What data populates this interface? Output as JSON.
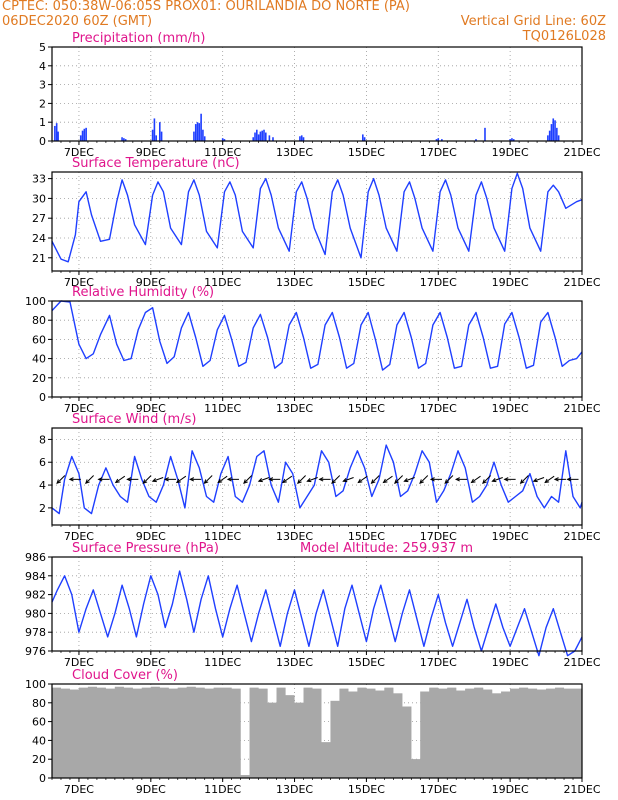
{
  "header": {
    "line1_left": "CPTEC:   050:38W-06:05S   PROX01: OURILANDIA DO NORTE (PA)",
    "line2_left": "06DEC2020 60Z (GMT)",
    "line2_right": "Vertical Grid Line: 60Z",
    "line3_right": "TQ0126L028"
  },
  "colors": {
    "header": "#e07a22",
    "title": "#e0158c",
    "series": "#1f3fff",
    "cloud": "#a8a8a8",
    "arrow": "#000000",
    "frame": "#000000",
    "grid": "#9a9a9a"
  },
  "chart_data": [
    {
      "type": "bar",
      "title": "Precipitation (mm/h)",
      "ylim": [
        0,
        5
      ],
      "yticks": [
        "0",
        "1",
        "2",
        "3",
        "4",
        "5"
      ],
      "xlim": [
        6.25,
        21.0
      ],
      "xticks": [
        {
          "x": 7,
          "label": "7DEC"
        },
        {
          "x": 9,
          "label": "9DEC"
        },
        {
          "x": 11,
          "label": "11DEC"
        },
        {
          "x": 13,
          "label": "13DEC"
        },
        {
          "x": 15,
          "label": "15DEC"
        },
        {
          "x": 17,
          "label": "17DEC"
        },
        {
          "x": 19,
          "label": "19DEC"
        },
        {
          "x": 21,
          "label": "21DEC"
        }
      ],
      "grid": "dotted",
      "x": [
        6.33,
        6.38,
        6.42,
        7.05,
        7.1,
        7.15,
        7.2,
        8.2,
        8.25,
        8.3,
        9.05,
        9.1,
        9.15,
        9.25,
        9.3,
        10.2,
        10.25,
        10.3,
        10.35,
        10.4,
        10.45,
        10.5,
        11.0,
        11.05,
        11.85,
        11.9,
        11.95,
        12.0,
        12.05,
        12.1,
        12.15,
        12.2,
        12.3,
        12.4,
        13.15,
        13.2,
        13.25,
        14.9,
        14.95,
        16.95,
        17.0,
        17.1,
        18.05,
        18.3,
        19.0,
        19.05,
        19.1,
        20.05,
        20.1,
        20.15,
        20.2,
        20.25,
        20.3,
        20.35
      ],
      "values": [
        0.8,
        0.95,
        0.5,
        0.3,
        0.55,
        0.65,
        0.7,
        0.2,
        0.15,
        0.1,
        0.6,
        1.2,
        0.3,
        1.0,
        0.5,
        0.5,
        0.9,
        1.0,
        0.95,
        1.45,
        0.6,
        0.25,
        0.15,
        0.1,
        0.2,
        0.45,
        0.6,
        0.35,
        0.5,
        0.55,
        0.6,
        0.45,
        0.3,
        0.2,
        0.25,
        0.3,
        0.2,
        0.35,
        0.2,
        0.1,
        0.15,
        0.1,
        0.1,
        0.7,
        0.1,
        0.15,
        0.1,
        0.3,
        0.55,
        0.9,
        1.2,
        1.1,
        0.7,
        0.3
      ]
    },
    {
      "type": "line",
      "title": "Surface Temperature (nC)",
      "ylim": [
        19,
        34
      ],
      "yticks": [
        "21",
        "24",
        "27",
        "30",
        "33"
      ],
      "ytick_values": [
        21,
        24,
        27,
        30,
        33
      ],
      "xlim": [
        6.25,
        21.0
      ],
      "xticks": [
        {
          "x": 7,
          "label": "7DEC"
        },
        {
          "x": 9,
          "label": "9DEC"
        },
        {
          "x": 11,
          "label": "11DEC"
        },
        {
          "x": 13,
          "label": "13DEC"
        },
        {
          "x": 15,
          "label": "15DEC"
        },
        {
          "x": 17,
          "label": "17DEC"
        },
        {
          "x": 19,
          "label": "19DEC"
        },
        {
          "x": 21,
          "label": "21DEC"
        }
      ],
      "grid": "dotted",
      "x": [
        6.25,
        6.5,
        6.7,
        6.9,
        7.0,
        7.2,
        7.35,
        7.6,
        7.85,
        8.05,
        8.2,
        8.35,
        8.55,
        8.85,
        9.05,
        9.2,
        9.35,
        9.55,
        9.85,
        10.05,
        10.2,
        10.35,
        10.55,
        10.85,
        11.05,
        11.2,
        11.35,
        11.55,
        11.85,
        12.05,
        12.2,
        12.35,
        12.55,
        12.85,
        13.05,
        13.2,
        13.35,
        13.55,
        13.85,
        14.05,
        14.2,
        14.35,
        14.55,
        14.85,
        15.05,
        15.2,
        15.35,
        15.55,
        15.85,
        16.05,
        16.2,
        16.35,
        16.55,
        16.85,
        17.05,
        17.2,
        17.35,
        17.55,
        17.85,
        18.05,
        18.2,
        18.35,
        18.55,
        18.85,
        19.05,
        19.2,
        19.35,
        19.55,
        19.85,
        20.05,
        20.2,
        20.35,
        20.55,
        20.85,
        21.0
      ],
      "values": [
        23.5,
        20.8,
        20.4,
        24.5,
        29.5,
        31.0,
        27.5,
        23.5,
        23.8,
        29.5,
        32.8,
        30.5,
        26.0,
        23.0,
        30.5,
        32.5,
        31.0,
        25.5,
        23.0,
        31.0,
        32.8,
        30.5,
        25.0,
        22.5,
        31.0,
        32.5,
        30.5,
        25.0,
        22.5,
        31.5,
        33.0,
        30.5,
        25.5,
        22.0,
        31.0,
        32.5,
        30.0,
        25.5,
        21.5,
        31.0,
        32.8,
        30.5,
        25.5,
        21.0,
        31.0,
        33.0,
        30.5,
        25.5,
        22.0,
        31.0,
        32.5,
        30.0,
        25.5,
        22.0,
        31.0,
        32.8,
        30.5,
        25.5,
        22.0,
        30.5,
        32.5,
        30.0,
        25.5,
        22.0,
        31.5,
        33.8,
        31.5,
        25.5,
        22.0,
        31.0,
        32.0,
        31.0,
        28.5,
        29.5,
        29.8
      ]
    },
    {
      "type": "line",
      "title": "Relative Humidity (%)",
      "ylim": [
        0,
        100
      ],
      "yticks": [
        "0",
        "20",
        "40",
        "60",
        "80",
        "100"
      ],
      "ytick_values": [
        0,
        20,
        40,
        60,
        80,
        100
      ],
      "xlim": [
        6.25,
        21.0
      ],
      "xticks": [
        {
          "x": 7,
          "label": "7DEC"
        },
        {
          "x": 9,
          "label": "9DEC"
        },
        {
          "x": 11,
          "label": "11DEC"
        },
        {
          "x": 13,
          "label": "13DEC"
        },
        {
          "x": 15,
          "label": "15DEC"
        },
        {
          "x": 17,
          "label": "17DEC"
        },
        {
          "x": 19,
          "label": "19DEC"
        },
        {
          "x": 21,
          "label": "21DEC"
        }
      ],
      "grid": "dotted",
      "x": [
        6.25,
        6.5,
        6.75,
        7.0,
        7.2,
        7.4,
        7.6,
        7.85,
        8.05,
        8.25,
        8.45,
        8.65,
        8.85,
        9.05,
        9.25,
        9.45,
        9.65,
        9.85,
        10.05,
        10.25,
        10.45,
        10.65,
        10.85,
        11.05,
        11.25,
        11.45,
        11.65,
        11.85,
        12.05,
        12.25,
        12.45,
        12.65,
        12.85,
        13.05,
        13.25,
        13.45,
        13.65,
        13.85,
        14.05,
        14.25,
        14.45,
        14.65,
        14.85,
        15.05,
        15.25,
        15.45,
        15.65,
        15.85,
        16.05,
        16.25,
        16.45,
        16.65,
        16.85,
        17.05,
        17.25,
        17.45,
        17.65,
        17.85,
        18.05,
        18.25,
        18.45,
        18.65,
        18.85,
        19.05,
        19.25,
        19.45,
        19.65,
        19.85,
        20.05,
        20.25,
        20.45,
        20.65,
        20.85,
        21.0
      ],
      "values": [
        90,
        100,
        99,
        55,
        40,
        45,
        65,
        85,
        55,
        38,
        40,
        70,
        88,
        93,
        58,
        35,
        42,
        72,
        88,
        62,
        32,
        38,
        70,
        85,
        60,
        32,
        36,
        72,
        86,
        62,
        30,
        36,
        75,
        88,
        62,
        30,
        34,
        75,
        88,
        62,
        30,
        35,
        75,
        88,
        60,
        28,
        34,
        75,
        88,
        62,
        30,
        35,
        75,
        88,
        62,
        30,
        32,
        75,
        88,
        62,
        30,
        32,
        76,
        88,
        62,
        30,
        33,
        78,
        88,
        62,
        32,
        38,
        40,
        47
      ]
    },
    {
      "type": "line",
      "title": "Surface Wind (m/s)",
      "ylim": [
        0.5,
        9.0
      ],
      "yticks": [
        "2",
        "4",
        "6",
        "8"
      ],
      "ytick_values": [
        2,
        4,
        6,
        8
      ],
      "xlim": [
        6.25,
        21.0
      ],
      "xticks": [
        {
          "x": 7,
          "label": "7DEC"
        },
        {
          "x": 9,
          "label": "9DEC"
        },
        {
          "x": 11,
          "label": "11DEC"
        },
        {
          "x": 13,
          "label": "13DEC"
        },
        {
          "x": 15,
          "label": "15DEC"
        },
        {
          "x": 17,
          "label": "17DEC"
        },
        {
          "x": 19,
          "label": "19DEC"
        },
        {
          "x": 21,
          "label": "21DEC"
        }
      ],
      "grid": "dotted",
      "x": [
        6.25,
        6.45,
        6.6,
        6.8,
        7.0,
        7.15,
        7.35,
        7.55,
        7.75,
        7.95,
        8.15,
        8.35,
        8.55,
        8.75,
        8.95,
        9.15,
        9.35,
        9.55,
        9.75,
        9.95,
        10.15,
        10.35,
        10.55,
        10.75,
        10.95,
        11.15,
        11.35,
        11.55,
        11.75,
        11.95,
        12.15,
        12.35,
        12.55,
        12.75,
        12.95,
        13.15,
        13.35,
        13.55,
        13.75,
        13.95,
        14.15,
        14.35,
        14.55,
        14.75,
        14.95,
        15.15,
        15.35,
        15.55,
        15.75,
        15.95,
        16.15,
        16.35,
        16.55,
        16.75,
        16.95,
        17.15,
        17.35,
        17.55,
        17.75,
        17.95,
        18.15,
        18.35,
        18.55,
        18.75,
        18.95,
        19.15,
        19.35,
        19.55,
        19.75,
        19.95,
        20.15,
        20.35,
        20.55,
        20.75,
        20.95,
        21.0
      ],
      "values": [
        2.0,
        1.5,
        4.5,
        6.5,
        5.0,
        2.0,
        1.5,
        4.0,
        5.5,
        4.0,
        3.0,
        2.5,
        6.5,
        4.5,
        3.0,
        2.5,
        4.0,
        6.5,
        4.5,
        2.0,
        7.0,
        5.5,
        3.0,
        2.5,
        5.0,
        6.5,
        3.0,
        2.5,
        4.0,
        6.5,
        7.0,
        4.0,
        2.5,
        6.0,
        5.0,
        2.0,
        3.0,
        4.0,
        7.0,
        6.0,
        3.0,
        3.5,
        5.5,
        7.0,
        5.5,
        3.0,
        4.5,
        7.5,
        6.0,
        3.0,
        3.5,
        5.0,
        7.0,
        6.0,
        2.5,
        3.5,
        5.0,
        7.0,
        5.5,
        2.5,
        3.0,
        4.0,
        6.0,
        4.0,
        2.5,
        3.0,
        3.5,
        5.0,
        3.0,
        2.0,
        3.0,
        2.5,
        7.0,
        3.0,
        2.0,
        2.5
      ],
      "arrows_x": [
        6.5,
        6.9,
        7.3,
        7.7,
        8.15,
        8.5,
        8.9,
        9.2,
        9.55,
        9.85,
        10.25,
        10.6,
        11.0,
        11.3,
        11.7,
        12.15,
        12.45,
        12.8,
        13.2,
        13.5,
        13.85,
        14.15,
        14.5,
        14.9,
        15.25,
        15.6,
        15.9,
        16.2,
        16.6,
        16.95,
        17.3,
        17.65,
        18.05,
        18.35,
        18.65,
        19.0,
        19.4,
        19.8,
        20.1,
        20.4,
        20.75
      ],
      "arrows_deg": [
        225,
        180,
        225,
        180,
        215,
        180,
        225,
        200,
        180,
        215,
        180,
        225,
        215,
        180,
        225,
        200,
        180,
        215,
        225,
        200,
        180,
        225,
        200,
        215,
        225,
        215,
        225,
        200,
        225,
        180,
        225,
        180,
        215,
        225,
        200,
        180,
        225,
        200,
        215,
        180,
        180
      ]
    },
    {
      "type": "line",
      "title": "Surface Pressure (hPa)",
      "annotation": "Model Altitude: 259.937 m",
      "ylim": [
        976,
        986
      ],
      "yticks": [
        "976",
        "978",
        "980",
        "982",
        "984",
        "986"
      ],
      "ytick_values": [
        976,
        978,
        980,
        982,
        984,
        986
      ],
      "xlim": [
        6.25,
        21.0
      ],
      "xticks": [
        {
          "x": 7,
          "label": "7DEC"
        },
        {
          "x": 9,
          "label": "9DEC"
        },
        {
          "x": 11,
          "label": "11DEC"
        },
        {
          "x": 13,
          "label": "13DEC"
        },
        {
          "x": 15,
          "label": "15DEC"
        },
        {
          "x": 17,
          "label": "17DEC"
        },
        {
          "x": 19,
          "label": "19DEC"
        },
        {
          "x": 21,
          "label": "21DEC"
        }
      ],
      "grid": "dotted",
      "x": [
        6.25,
        6.4,
        6.6,
        6.8,
        7.0,
        7.2,
        7.4,
        7.6,
        7.8,
        8.0,
        8.2,
        8.4,
        8.6,
        8.8,
        9.0,
        9.2,
        9.4,
        9.6,
        9.8,
        10.0,
        10.2,
        10.4,
        10.6,
        10.8,
        11.0,
        11.2,
        11.4,
        11.6,
        11.8,
        12.0,
        12.2,
        12.4,
        12.6,
        12.8,
        13.0,
        13.2,
        13.4,
        13.6,
        13.8,
        14.0,
        14.2,
        14.4,
        14.6,
        14.8,
        15.0,
        15.2,
        15.4,
        15.6,
        15.8,
        16.0,
        16.2,
        16.4,
        16.6,
        16.8,
        17.0,
        17.2,
        17.4,
        17.6,
        17.8,
        18.0,
        18.2,
        18.4,
        18.6,
        18.8,
        19.0,
        19.2,
        19.4,
        19.6,
        19.8,
        20.0,
        20.2,
        20.4,
        20.6,
        20.8,
        21.0
      ],
      "values": [
        981.2,
        982.5,
        984.0,
        982.0,
        978.0,
        980.5,
        982.5,
        980.0,
        977.5,
        980.0,
        983.0,
        980.5,
        977.5,
        981.0,
        984.0,
        982.0,
        978.5,
        981.0,
        984.5,
        981.5,
        978.0,
        981.5,
        984.0,
        980.5,
        977.5,
        980.5,
        983.0,
        980.0,
        977.0,
        980.0,
        982.5,
        979.5,
        976.5,
        980.0,
        982.5,
        979.5,
        976.5,
        980.0,
        982.5,
        979.5,
        976.5,
        980.5,
        983.0,
        980.0,
        977.0,
        980.5,
        983.0,
        980.0,
        977.0,
        980.0,
        982.5,
        979.5,
        976.5,
        979.5,
        982.0,
        979.0,
        976.5,
        979.0,
        981.5,
        978.5,
        976.0,
        978.5,
        981.0,
        978.5,
        976.5,
        978.5,
        980.5,
        978.0,
        975.5,
        978.5,
        980.5,
        978.0,
        975.5,
        976.0,
        977.5
      ]
    },
    {
      "type": "bar",
      "title": "Cloud Cover (%)",
      "ylim": [
        0,
        100
      ],
      "yticks": [
        "0",
        "20",
        "40",
        "60",
        "80",
        "100"
      ],
      "ytick_values": [
        0,
        20,
        40,
        60,
        80,
        100
      ],
      "xlim": [
        6.25,
        21.0
      ],
      "xticks": [
        {
          "x": 7,
          "label": "7DEC"
        },
        {
          "x": 9,
          "label": "9DEC"
        },
        {
          "x": 11,
          "label": "11DEC"
        },
        {
          "x": 13,
          "label": "13DEC"
        },
        {
          "x": 15,
          "label": "15DEC"
        },
        {
          "x": 17,
          "label": "17DEC"
        },
        {
          "x": 19,
          "label": "19DEC"
        },
        {
          "x": 21,
          "label": "21DEC"
        }
      ],
      "grid": "dotted",
      "x": [
        6.25,
        6.5,
        6.75,
        7.0,
        7.25,
        7.5,
        7.75,
        8.0,
        8.25,
        8.5,
        8.75,
        9.0,
        9.25,
        9.5,
        9.75,
        10.0,
        10.25,
        10.5,
        10.75,
        11.0,
        11.25,
        11.5,
        11.75,
        12.0,
        12.25,
        12.5,
        12.75,
        13.0,
        13.25,
        13.5,
        13.75,
        14.0,
        14.25,
        14.5,
        14.75,
        15.0,
        15.25,
        15.5,
        15.75,
        16.0,
        16.25,
        16.5,
        16.75,
        17.0,
        17.25,
        17.5,
        17.75,
        18.0,
        18.25,
        18.5,
        18.75,
        19.0,
        19.25,
        19.5,
        19.75,
        20.0,
        20.25,
        20.5,
        20.75
      ],
      "values": [
        96,
        95,
        94,
        96,
        97,
        96,
        95,
        97,
        96,
        95,
        96,
        97,
        96,
        95,
        96,
        97,
        96,
        95,
        96,
        96,
        95,
        3,
        96,
        95,
        80,
        96,
        88,
        80,
        96,
        95,
        38,
        82,
        95,
        92,
        96,
        95,
        93,
        96,
        90,
        76,
        20,
        92,
        96,
        95,
        96,
        93,
        95,
        96,
        94,
        90,
        92,
        95,
        96,
        95,
        94,
        95,
        96,
        95,
        95
      ]
    }
  ]
}
